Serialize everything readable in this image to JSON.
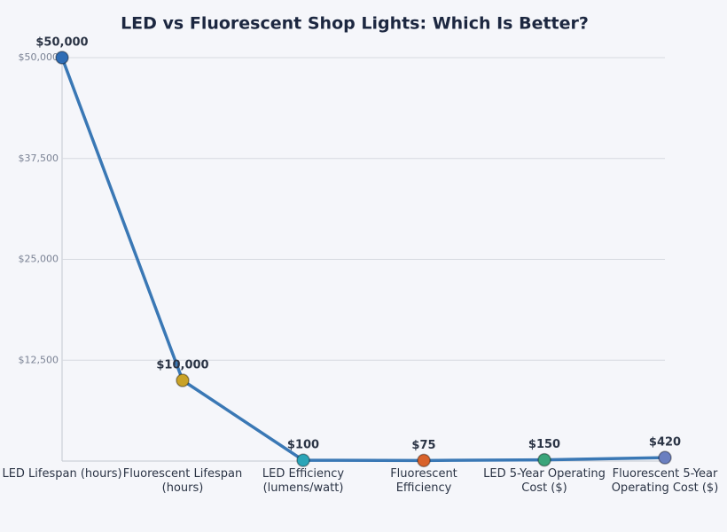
{
  "chart_data": {
    "type": "line",
    "title": "LED vs Fluorescent Shop Lights: Which Is Better?",
    "categories": [
      "LED Lifespan (hours)",
      "Fluorescent Lifespan (hours)",
      "LED Efficiency (lumens/watt)",
      "Fluorescent Efficiency",
      "LED 5-Year Operating Cost ($)",
      "Fluorescent 5-Year Operating Cost ($)"
    ],
    "values": [
      50000,
      10000,
      100,
      75,
      150,
      420
    ],
    "value_labels": [
      "$50,000",
      "$10,000",
      "$100",
      "$75",
      "$150",
      "$420"
    ],
    "color": "#3a78b5",
    "point_colors": [
      "#2f6db5",
      "#c9a227",
      "#2aa5b8",
      "#d9622b",
      "#3aa57a",
      "#6a7fc0"
    ],
    "ylim": [
      0,
      50000
    ],
    "yticks": [
      {
        "value": 12500,
        "label": "$12,500"
      },
      {
        "value": 25000,
        "label": "$25,000"
      },
      {
        "value": 37500,
        "label": "$37,500"
      },
      {
        "value": 50000,
        "label": "$50,000"
      }
    ],
    "grid": true
  }
}
